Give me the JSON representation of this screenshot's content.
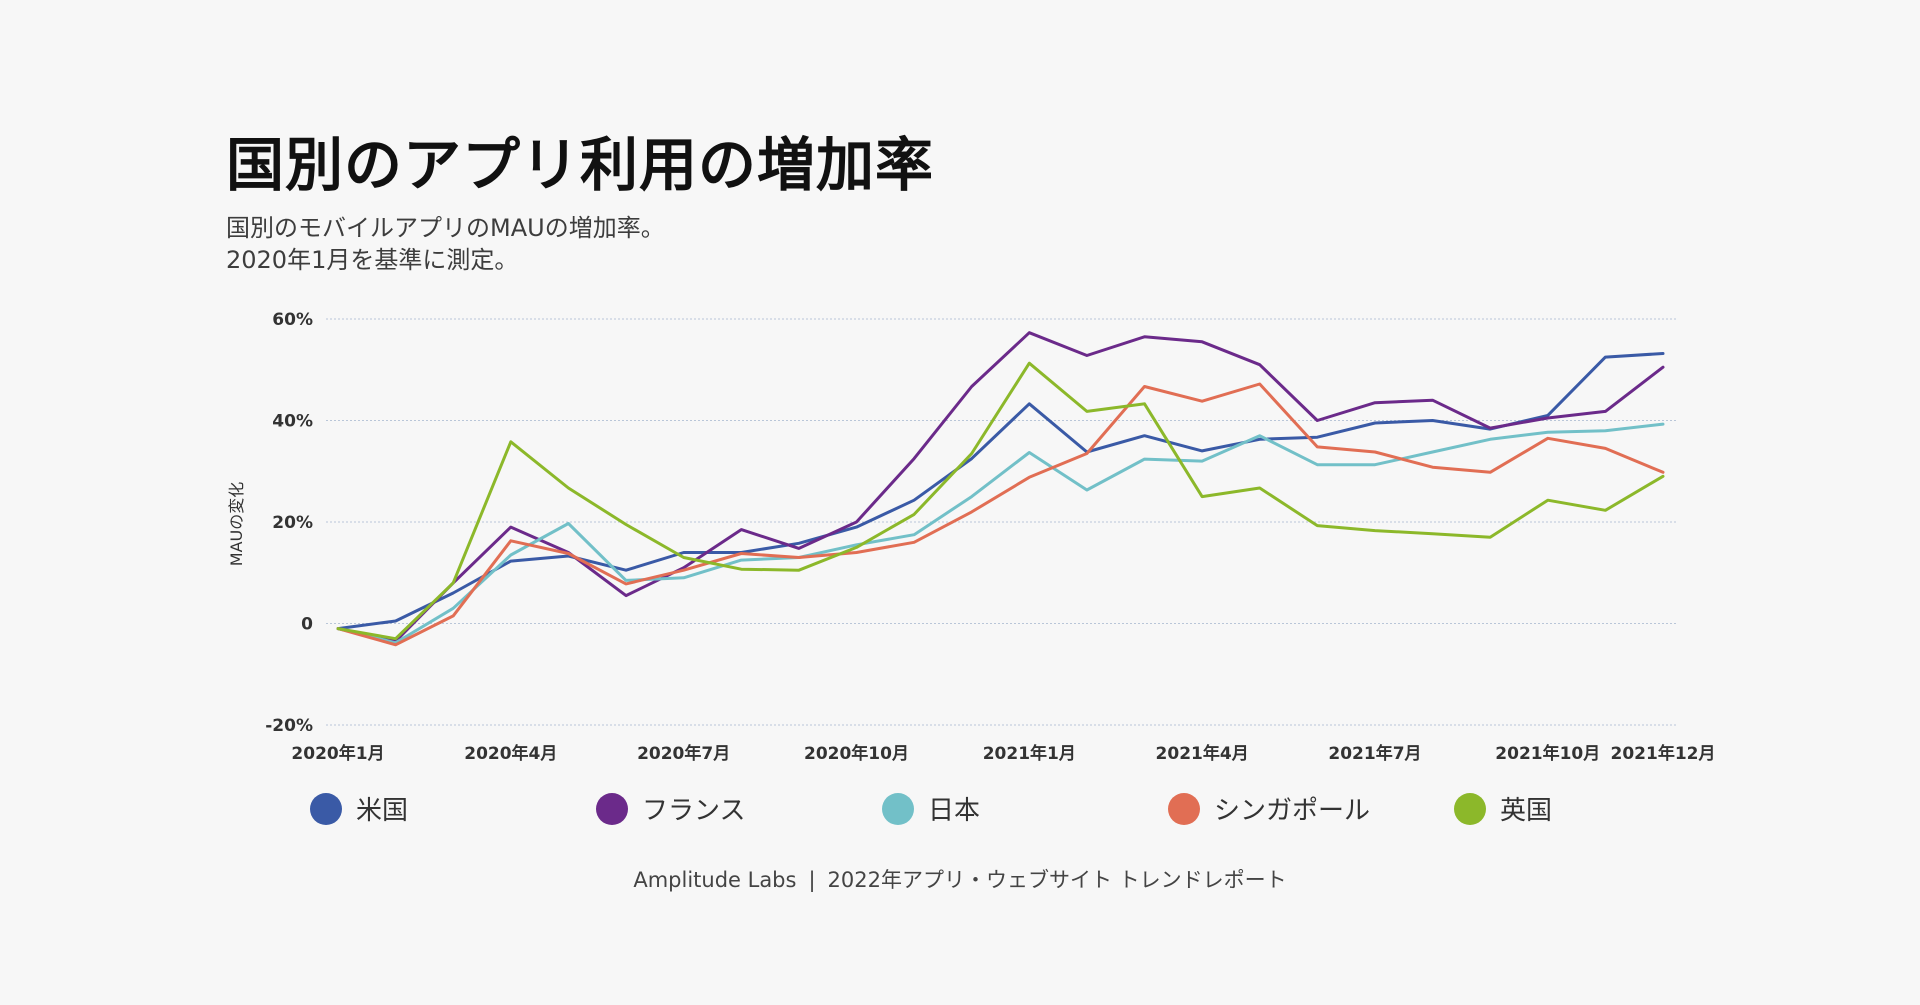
{
  "title": "国別のアプリ利用の増加率",
  "subtitle_lines": [
    "国別のモバイルアプリのMAUの増加率。",
    "2020年1月を基準に測定。"
  ],
  "footer": {
    "brand": "Amplitude Labs",
    "separator": "|",
    "report": "2022年アプリ・ウェブサイト トレンドレポート"
  },
  "chart_data": {
    "type": "line",
    "ylabel": "MAUの変化",
    "ylim": [
      -20,
      60
    ],
    "yticks": [
      -20,
      0,
      20,
      40,
      60
    ],
    "ytick_labels": [
      "-20%",
      "0",
      "20%",
      "40%",
      "60%"
    ],
    "x": [
      "2020-01",
      "2020-02",
      "2020-03",
      "2020-04",
      "2020-05",
      "2020-06",
      "2020-07",
      "2020-08",
      "2020-09",
      "2020-10",
      "2020-11",
      "2020-12",
      "2021-01",
      "2021-02",
      "2021-03",
      "2021-04",
      "2021-05",
      "2021-06",
      "2021-07",
      "2021-08",
      "2021-09",
      "2021-10",
      "2021-11",
      "2021-12"
    ],
    "xtick_labels": [
      {
        "index": 0,
        "label": "2020年1月"
      },
      {
        "index": 3,
        "label": "2020年4月"
      },
      {
        "index": 6,
        "label": "2020年7月"
      },
      {
        "index": 9,
        "label": "2020年10月"
      },
      {
        "index": 12,
        "label": "2021年1月"
      },
      {
        "index": 15,
        "label": "2021年4月"
      },
      {
        "index": 18,
        "label": "2021年7月"
      },
      {
        "index": 21,
        "label": "2021年10月"
      },
      {
        "index": 23,
        "label": "2021年12月"
      }
    ],
    "grid": true,
    "legend_position": "bottom",
    "series": [
      {
        "name": "米国",
        "color": "#3a5aa6",
        "values": [
          -1,
          0.5,
          6,
          12.3,
          13.3,
          10.5,
          14,
          14,
          15.8,
          19,
          24.3,
          32.5,
          43.3,
          33.8,
          37,
          34,
          36.3,
          36.7,
          39.5,
          40,
          38.3,
          41,
          52.5,
          53.2
        ]
      },
      {
        "name": "フランス",
        "color": "#6b2a8a",
        "values": [
          -1,
          -3.5,
          8,
          19,
          14,
          5.5,
          11,
          18.5,
          14.8,
          20,
          32.5,
          46.7,
          57.3,
          52.8,
          56.5,
          55.5,
          51,
          40,
          43.5,
          44,
          38.5,
          40.5,
          41.8,
          50.5
        ]
      },
      {
        "name": "日本",
        "color": "#72c0c8",
        "values": [
          -1,
          -3.8,
          3,
          13.5,
          19.7,
          8.5,
          9,
          12.5,
          13,
          15.5,
          17.5,
          25,
          33.7,
          26.3,
          32.4,
          32,
          37,
          31.3,
          31.3,
          33.8,
          36.3,
          37.7,
          38,
          39.3
        ]
      },
      {
        "name": "シンガポール",
        "color": "#e16e54",
        "values": [
          -1,
          -4.2,
          1.5,
          16.3,
          13.8,
          7.8,
          10.5,
          13.8,
          13,
          14,
          16,
          22,
          28.8,
          33.5,
          46.7,
          43.8,
          47.2,
          34.8,
          33.8,
          30.8,
          29.8,
          36.5,
          34.5,
          29.8
        ]
      },
      {
        "name": "英国",
        "color": "#8cb82a",
        "values": [
          -1,
          -3,
          8,
          35.8,
          26.7,
          19.5,
          13,
          10.7,
          10.5,
          15,
          21.5,
          33.5,
          51.3,
          41.8,
          43.3,
          25,
          26.7,
          19.3,
          18.3,
          17.7,
          17,
          24.3,
          22.3,
          29
        ]
      }
    ]
  }
}
